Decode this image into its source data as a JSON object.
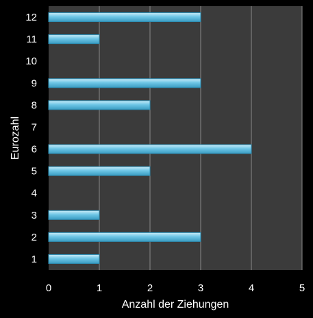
{
  "chart_data": {
    "type": "bar",
    "orientation": "horizontal",
    "categories": [
      "1",
      "2",
      "3",
      "4",
      "5",
      "6",
      "7",
      "8",
      "9",
      "10",
      "11",
      "12"
    ],
    "values": [
      1,
      3,
      1,
      0,
      2,
      4,
      0,
      2,
      3,
      0,
      1,
      3
    ],
    "xlabel": "Anzahl der Ziehungen",
    "ylabel": "Eurozahl",
    "xlim": [
      0,
      5
    ],
    "xticks": [
      "0",
      "1",
      "2",
      "3",
      "4",
      "5"
    ],
    "grid": "vertical",
    "colors": {
      "background": "#000000",
      "plot_area": "#3b3b3b",
      "bar_fill": "#6ec6e6",
      "bar_highlight": "#c9ecf8",
      "bar_edge": "#2f8fb5",
      "gridline": "#8a8a8a",
      "text": "#ffffff"
    }
  }
}
